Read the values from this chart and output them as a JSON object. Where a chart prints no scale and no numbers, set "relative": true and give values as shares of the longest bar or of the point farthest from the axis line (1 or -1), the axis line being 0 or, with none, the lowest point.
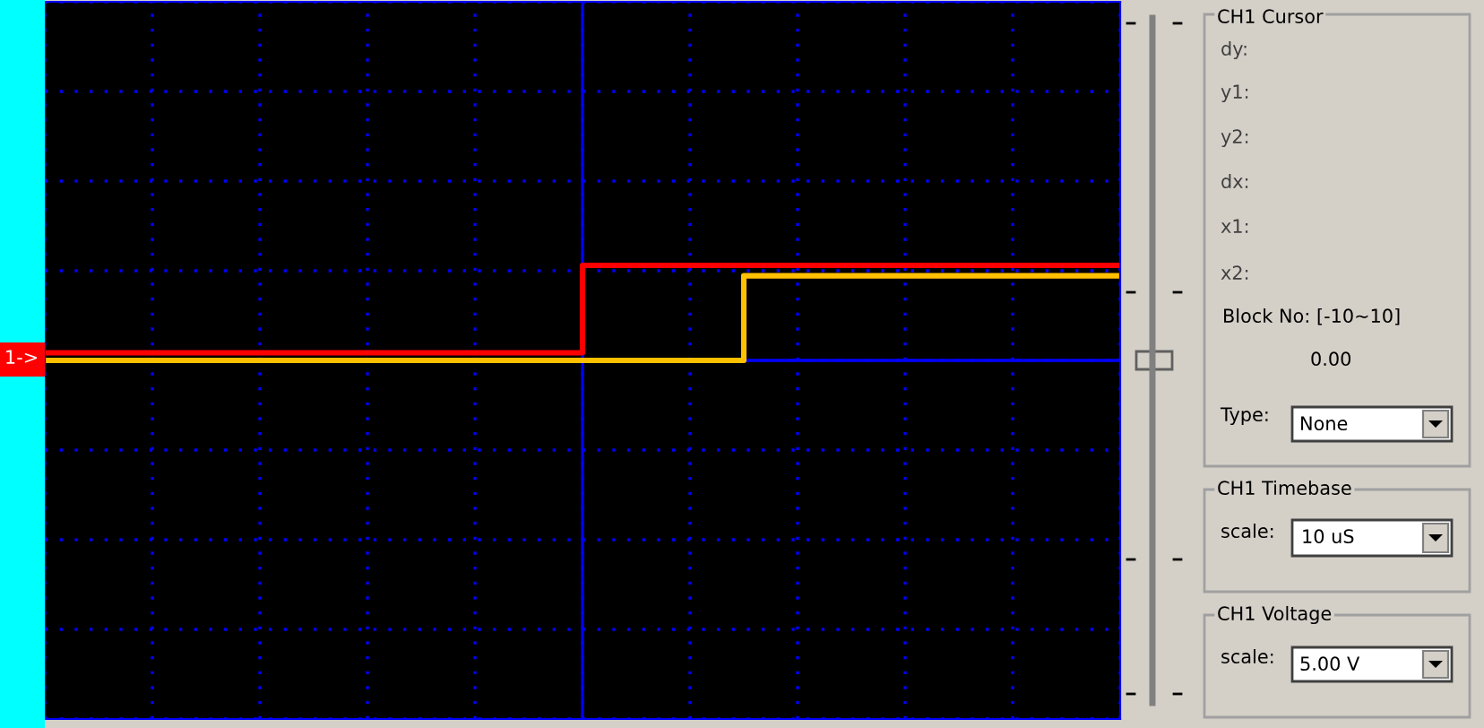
{
  "chart_data": {
    "type": "step",
    "relative": true,
    "grid": true,
    "categories": [
      null,
      null,
      null,
      null,
      null,
      null,
      null,
      null,
      null,
      null,
      null,
      null,
      null,
      null,
      null,
      null,
      null,
      null,
      null,
      null,
      null,
      null,
      null,
      null,
      null,
      null,
      null,
      null,
      null,
      null,
      null,
      null,
      null,
      null,
      null,
      null,
      null,
      null,
      null,
      null,
      null
    ],
    "series": [
      {
        "color": "#ff0000",
        "values": [
          0.08,
          0.08,
          0.08,
          0.08,
          0.08,
          0.08,
          0.08,
          0.08,
          0.08,
          0.08,
          0.08,
          0.08,
          0.08,
          0.08,
          0.08,
          0.08,
          0.08,
          0.08,
          0.08,
          0.08,
          1,
          1,
          1,
          1,
          1,
          1,
          1,
          1,
          1,
          1,
          1,
          1,
          1,
          1,
          1,
          1,
          1,
          1,
          1,
          1,
          1
        ]
      },
      {
        "color": "#ffc000",
        "values": [
          0,
          0,
          0,
          0,
          0,
          0,
          0,
          0,
          0,
          0,
          0,
          0,
          0,
          0,
          0,
          0,
          0,
          0,
          0,
          0,
          0,
          0,
          0,
          0,
          0,
          0,
          0.89,
          0.89,
          0.89,
          0.89,
          0.89,
          0.89,
          0.89,
          0.89,
          0.89,
          0.89,
          0.89,
          0.89,
          0.89,
          0.89,
          0.89
        ]
      }
    ],
    "annotations": [
      "1->",
      "CH1 Cursor",
      "dy:",
      "y1:",
      "y2:",
      "dx:",
      "x1:",
      "x2:",
      "Block No: [-10~10]",
      "0.00",
      "Type:",
      "None",
      "CH1 Timebase",
      "scale:",
      "10 uS",
      "CH1 Voltage",
      "scale:",
      "5.00 V"
    ]
  }
}
